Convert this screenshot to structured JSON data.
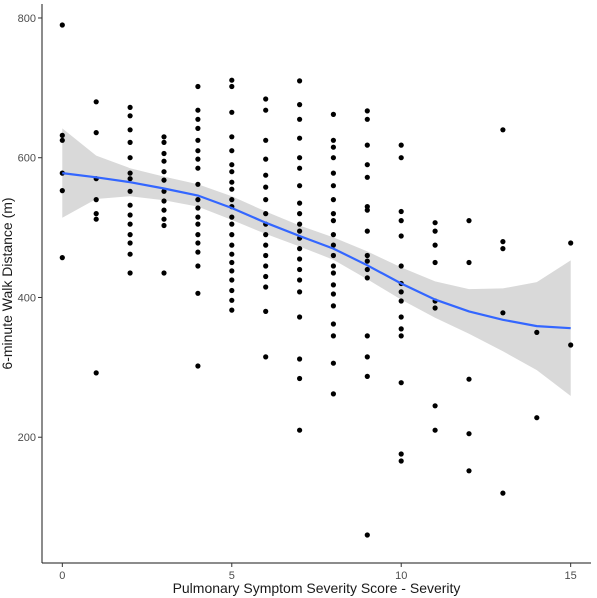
{
  "chart_data": {
    "type": "scatter",
    "title": "",
    "xlabel": "Pulmonary Symptom Severity Score - Severity",
    "ylabel": "6-minute Walk Distance (m)",
    "xlim": [
      -0.6,
      15.6
    ],
    "ylim": [
      20,
      820
    ],
    "xticks": [
      0,
      5,
      10,
      15
    ],
    "yticks": [
      200,
      400,
      600,
      800
    ],
    "grid": false,
    "legend": "none",
    "colors": {
      "points": "#000000",
      "smooth_line": "#3366ff",
      "ribbon": "#d9d9d9"
    },
    "points": [
      [
        0,
        790
      ],
      [
        0,
        632
      ],
      [
        0,
        625
      ],
      [
        0,
        578
      ],
      [
        0,
        553
      ],
      [
        0,
        457
      ],
      [
        1,
        680
      ],
      [
        1,
        636
      ],
      [
        1,
        570
      ],
      [
        1,
        540
      ],
      [
        1,
        520
      ],
      [
        1,
        512
      ],
      [
        1,
        292
      ],
      [
        2,
        672
      ],
      [
        2,
        660
      ],
      [
        2,
        640
      ],
      [
        2,
        622
      ],
      [
        2,
        600
      ],
      [
        2,
        578
      ],
      [
        2,
        570
      ],
      [
        2,
        552
      ],
      [
        2,
        532
      ],
      [
        2,
        518
      ],
      [
        2,
        505
      ],
      [
        2,
        490
      ],
      [
        2,
        478
      ],
      [
        2,
        462
      ],
      [
        2,
        435
      ],
      [
        3,
        630
      ],
      [
        3,
        622
      ],
      [
        3,
        606
      ],
      [
        3,
        595
      ],
      [
        3,
        580
      ],
      [
        3,
        568
      ],
      [
        3,
        552
      ],
      [
        3,
        538
      ],
      [
        3,
        525
      ],
      [
        3,
        512
      ],
      [
        3,
        503
      ],
      [
        3,
        435
      ],
      [
        4,
        702
      ],
      [
        4,
        668
      ],
      [
        4,
        655
      ],
      [
        4,
        642
      ],
      [
        4,
        625
      ],
      [
        4,
        610
      ],
      [
        4,
        598
      ],
      [
        4,
        585
      ],
      [
        4,
        562
      ],
      [
        4,
        540
      ],
      [
        4,
        528
      ],
      [
        4,
        515
      ],
      [
        4,
        505
      ],
      [
        4,
        490
      ],
      [
        4,
        478
      ],
      [
        4,
        465
      ],
      [
        4,
        445
      ],
      [
        4,
        406
      ],
      [
        4,
        302
      ],
      [
        5,
        711
      ],
      [
        5,
        702
      ],
      [
        5,
        665
      ],
      [
        5,
        630
      ],
      [
        5,
        610
      ],
      [
        5,
        590
      ],
      [
        5,
        580
      ],
      [
        5,
        565
      ],
      [
        5,
        555
      ],
      [
        5,
        540
      ],
      [
        5,
        530
      ],
      [
        5,
        515
      ],
      [
        5,
        505
      ],
      [
        5,
        490
      ],
      [
        5,
        475
      ],
      [
        5,
        462
      ],
      [
        5,
        450
      ],
      [
        5,
        438
      ],
      [
        5,
        425
      ],
      [
        5,
        410
      ],
      [
        5,
        396
      ],
      [
        5,
        382
      ],
      [
        6,
        684
      ],
      [
        6,
        668
      ],
      [
        6,
        625
      ],
      [
        6,
        598
      ],
      [
        6,
        575
      ],
      [
        6,
        558
      ],
      [
        6,
        540
      ],
      [
        6,
        520
      ],
      [
        6,
        505
      ],
      [
        6,
        490
      ],
      [
        6,
        475
      ],
      [
        6,
        460
      ],
      [
        6,
        445
      ],
      [
        6,
        430
      ],
      [
        6,
        415
      ],
      [
        6,
        380
      ],
      [
        6,
        315
      ],
      [
        7,
        710
      ],
      [
        7,
        676
      ],
      [
        7,
        655
      ],
      [
        7,
        628
      ],
      [
        7,
        600
      ],
      [
        7,
        585
      ],
      [
        7,
        560
      ],
      [
        7,
        535
      ],
      [
        7,
        520
      ],
      [
        7,
        505
      ],
      [
        7,
        495
      ],
      [
        7,
        485
      ],
      [
        7,
        470
      ],
      [
        7,
        455
      ],
      [
        7,
        440
      ],
      [
        7,
        425
      ],
      [
        7,
        408
      ],
      [
        7,
        372
      ],
      [
        7,
        312
      ],
      [
        7,
        284
      ],
      [
        7,
        210
      ],
      [
        8,
        662
      ],
      [
        8,
        625
      ],
      [
        8,
        615
      ],
      [
        8,
        600
      ],
      [
        8,
        578
      ],
      [
        8,
        560
      ],
      [
        8,
        540
      ],
      [
        8,
        520
      ],
      [
        8,
        510
      ],
      [
        8,
        490
      ],
      [
        8,
        475
      ],
      [
        8,
        460
      ],
      [
        8,
        445
      ],
      [
        8,
        435
      ],
      [
        8,
        418
      ],
      [
        8,
        405
      ],
      [
        8,
        388
      ],
      [
        8,
        362
      ],
      [
        8,
        345
      ],
      [
        8,
        306
      ],
      [
        8,
        262
      ],
      [
        9,
        667
      ],
      [
        9,
        655
      ],
      [
        9,
        618
      ],
      [
        9,
        590
      ],
      [
        9,
        572
      ],
      [
        9,
        530
      ],
      [
        9,
        525
      ],
      [
        9,
        495
      ],
      [
        9,
        460
      ],
      [
        9,
        452
      ],
      [
        9,
        440
      ],
      [
        9,
        428
      ],
      [
        9,
        345
      ],
      [
        9,
        315
      ],
      [
        9,
        287
      ],
      [
        9,
        60
      ],
      [
        10,
        618
      ],
      [
        10,
        600
      ],
      [
        10,
        523
      ],
      [
        10,
        510
      ],
      [
        10,
        488
      ],
      [
        10,
        445
      ],
      [
        10,
        420
      ],
      [
        10,
        408
      ],
      [
        10,
        395
      ],
      [
        10,
        372
      ],
      [
        10,
        355
      ],
      [
        10,
        345
      ],
      [
        10,
        278
      ],
      [
        10,
        176
      ],
      [
        10,
        166
      ],
      [
        11,
        507
      ],
      [
        11,
        495
      ],
      [
        11,
        475
      ],
      [
        11,
        450
      ],
      [
        11,
        395
      ],
      [
        11,
        385
      ],
      [
        11,
        245
      ],
      [
        11,
        210
      ],
      [
        12,
        510
      ],
      [
        12,
        450
      ],
      [
        12,
        283
      ],
      [
        12,
        205
      ],
      [
        12,
        152
      ],
      [
        13,
        640
      ],
      [
        13,
        480
      ],
      [
        13,
        470
      ],
      [
        13,
        378
      ],
      [
        13,
        120
      ],
      [
        14,
        350
      ],
      [
        14,
        228
      ],
      [
        15,
        478
      ],
      [
        15,
        332
      ]
    ],
    "smooth_line": [
      [
        0,
        578
      ],
      [
        1,
        572
      ],
      [
        2,
        565
      ],
      [
        3,
        556
      ],
      [
        4,
        546
      ],
      [
        5,
        528
      ],
      [
        6,
        507
      ],
      [
        7,
        488
      ],
      [
        8,
        470
      ],
      [
        9,
        446
      ],
      [
        10,
        420
      ],
      [
        11,
        397
      ],
      [
        12,
        380
      ],
      [
        13,
        368
      ],
      [
        14,
        359
      ],
      [
        15,
        356
      ]
    ],
    "ribbon_upper": [
      [
        0,
        642
      ],
      [
        1,
        603
      ],
      [
        2,
        585
      ],
      [
        3,
        573
      ],
      [
        4,
        562
      ],
      [
        5,
        545
      ],
      [
        6,
        523
      ],
      [
        7,
        503
      ],
      [
        8,
        486
      ],
      [
        9,
        466
      ],
      [
        10,
        443
      ],
      [
        11,
        423
      ],
      [
        12,
        412
      ],
      [
        13,
        413
      ],
      [
        14,
        422
      ],
      [
        15,
        453
      ]
    ],
    "ribbon_lower": [
      [
        0,
        514
      ],
      [
        1,
        541
      ],
      [
        2,
        545
      ],
      [
        3,
        539
      ],
      [
        4,
        530
      ],
      [
        5,
        511
      ],
      [
        6,
        491
      ],
      [
        7,
        473
      ],
      [
        8,
        454
      ],
      [
        9,
        426
      ],
      [
        10,
        397
      ],
      [
        11,
        371
      ],
      [
        12,
        348
      ],
      [
        13,
        323
      ],
      [
        14,
        296
      ],
      [
        15,
        259
      ]
    ]
  }
}
